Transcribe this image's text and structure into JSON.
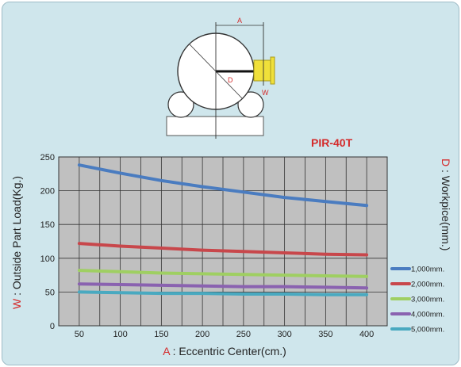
{
  "chart_data": {
    "type": "line",
    "model_label": "PIR-40T",
    "diagram_labels": {
      "a": "A",
      "d": "D",
      "w": "W"
    },
    "y_label_prefix": "W",
    "y_label_rest": " : Outside Part Load(Kg.)",
    "x_label_prefix": "A",
    "x_label_rest": " : Eccentric Center(cm.)",
    "legend_title_prefix": "D",
    "legend_title_rest": " : Workpice(mm.)",
    "x": [
      50,
      100,
      150,
      200,
      250,
      300,
      350,
      400
    ],
    "x_ticks": [
      "50",
      "100",
      "150",
      "200",
      "250",
      "300",
      "350",
      "400"
    ],
    "y_ticks": [
      "0",
      "50",
      "100",
      "150",
      "200",
      "250"
    ],
    "xlim": [
      25,
      425
    ],
    "ylim": [
      0,
      250
    ],
    "grid": true,
    "legend_position": "right",
    "series": [
      {
        "name": "1,000mm.",
        "color": "#4a7cc0",
        "values": [
          238,
          226,
          215,
          206,
          198,
          190,
          184,
          178
        ]
      },
      {
        "name": "2,000mm.",
        "color": "#c8474b",
        "values": [
          122,
          118,
          115,
          112,
          110,
          108,
          106,
          105
        ]
      },
      {
        "name": "3,000mm.",
        "color": "#9fcf62",
        "values": [
          82,
          80,
          78,
          77,
          76,
          75,
          74,
          73
        ]
      },
      {
        "name": "4,000mm.",
        "color": "#8a62b0",
        "values": [
          62,
          61,
          60,
          59,
          58,
          58,
          57,
          56
        ]
      },
      {
        "name": "5,000mm.",
        "color": "#49a9c0",
        "values": [
          50,
          49,
          48,
          48,
          47,
          47,
          46,
          46
        ]
      }
    ]
  }
}
